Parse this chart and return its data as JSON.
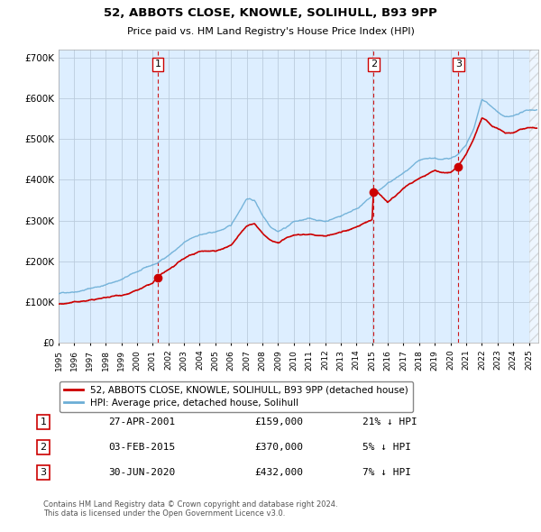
{
  "title": "52, ABBOTS CLOSE, KNOWLE, SOLIHULL, B93 9PP",
  "subtitle": "Price paid vs. HM Land Registry's House Price Index (HPI)",
  "ylim": [
    0,
    720000
  ],
  "yticks": [
    0,
    100000,
    200000,
    300000,
    400000,
    500000,
    600000,
    700000
  ],
  "ytick_labels": [
    "£0",
    "£100K",
    "£200K",
    "£300K",
    "£400K",
    "£500K",
    "£600K",
    "£700K"
  ],
  "hpi_color": "#6baed6",
  "price_color": "#cc0000",
  "chart_bg": "#ddeeff",
  "background_color": "#ffffff",
  "grid_color": "#bbccdd",
  "vline_color": "#cc0000",
  "legend_label_price": "52, ABBOTS CLOSE, KNOWLE, SOLIHULL, B93 9PP (detached house)",
  "legend_label_hpi": "HPI: Average price, detached house, Solihull",
  "sales": [
    {
      "num": 1,
      "date_x": 2001.32,
      "price": 159000
    },
    {
      "num": 2,
      "date_x": 2015.09,
      "price": 370000
    },
    {
      "num": 3,
      "date_x": 2020.5,
      "price": 432000
    }
  ],
  "copyright_text": "Contains HM Land Registry data © Crown copyright and database right 2024.\nThis data is licensed under the Open Government Licence v3.0.",
  "table_rows": [
    [
      "1",
      "27-APR-2001",
      "£159,000",
      "21% ↓ HPI"
    ],
    [
      "2",
      "03-FEB-2015",
      "£370,000",
      "5% ↓ HPI"
    ],
    [
      "3",
      "30-JUN-2020",
      "£432,000",
      "7% ↓ HPI"
    ]
  ],
  "xmin": 1995,
  "xmax": 2025.5
}
